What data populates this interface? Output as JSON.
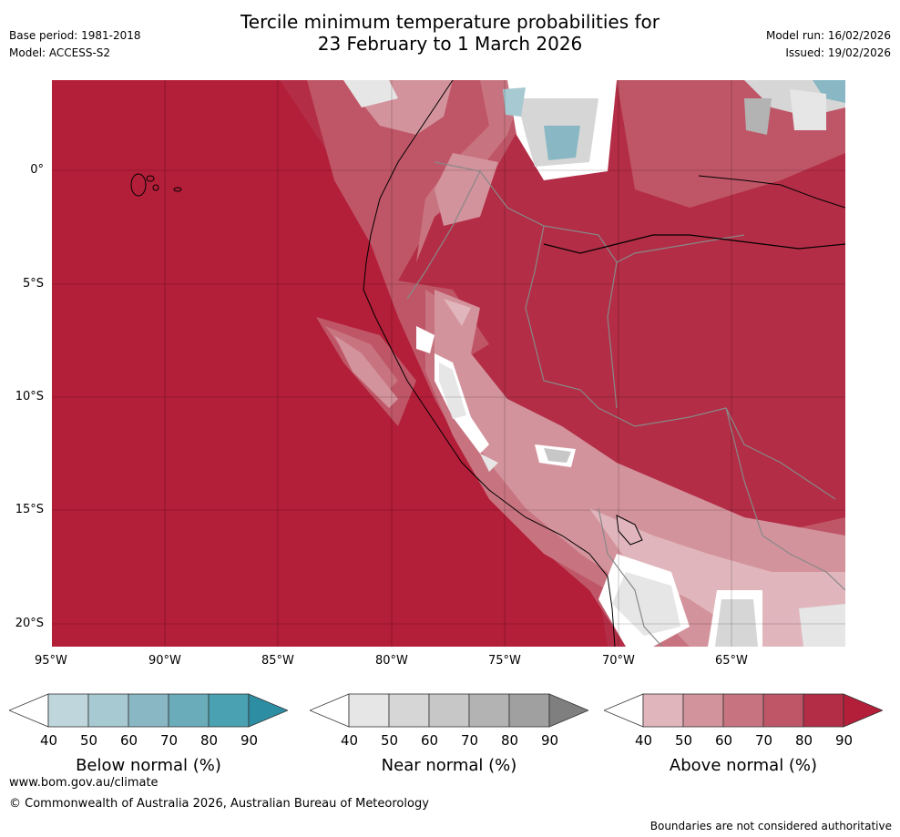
{
  "header": {
    "title_line1": "Tercile minimum temperature probabilities for",
    "title_line2": "23 February to 1 March 2026",
    "base_period": "Base period: 1981-2018",
    "model": "Model: ACCESS-S2",
    "model_run": "Model run: 16/02/2026",
    "issued": "Issued: 19/02/2026"
  },
  "axes": {
    "lon_labels": [
      "95°W",
      "90°W",
      "85°W",
      "80°W",
      "75°W",
      "70°W",
      "65°W"
    ],
    "lat_labels": [
      "0°",
      "5°S",
      "10°S",
      "15°S",
      "20°S"
    ]
  },
  "colorbars": [
    {
      "title": "Below normal (%)",
      "ticks": [
        "40",
        "50",
        "60",
        "70",
        "80",
        "90"
      ],
      "colors": [
        "#ffffff",
        "#bfd6dc",
        "#a7c9d1",
        "#89b8c4",
        "#6bacba",
        "#4aa1b1",
        "#2d8ea3"
      ]
    },
    {
      "title": "Near normal (%)",
      "ticks": [
        "40",
        "50",
        "60",
        "70",
        "80",
        "90"
      ],
      "colors": [
        "#ffffff",
        "#e6e6e6",
        "#d6d6d6",
        "#c7c7c7",
        "#b3b3b3",
        "#a0a0a0",
        "#7f7f7f"
      ]
    },
    {
      "title": "Above normal (%)",
      "ticks": [
        "40",
        "50",
        "60",
        "70",
        "80",
        "90"
      ],
      "colors": [
        "#ffffff",
        "#e0b6bc",
        "#d3939c",
        "#c87480",
        "#bf5667",
        "#b32d46",
        "#b31e38"
      ]
    }
  ],
  "footer": {
    "url": "www.bom.gov.au/climate",
    "copyright": "© Commonwealth of Australia 2026, Australian Bureau of Meteorology",
    "disclaimer": "Boundaries are not considered authoritative"
  }
}
